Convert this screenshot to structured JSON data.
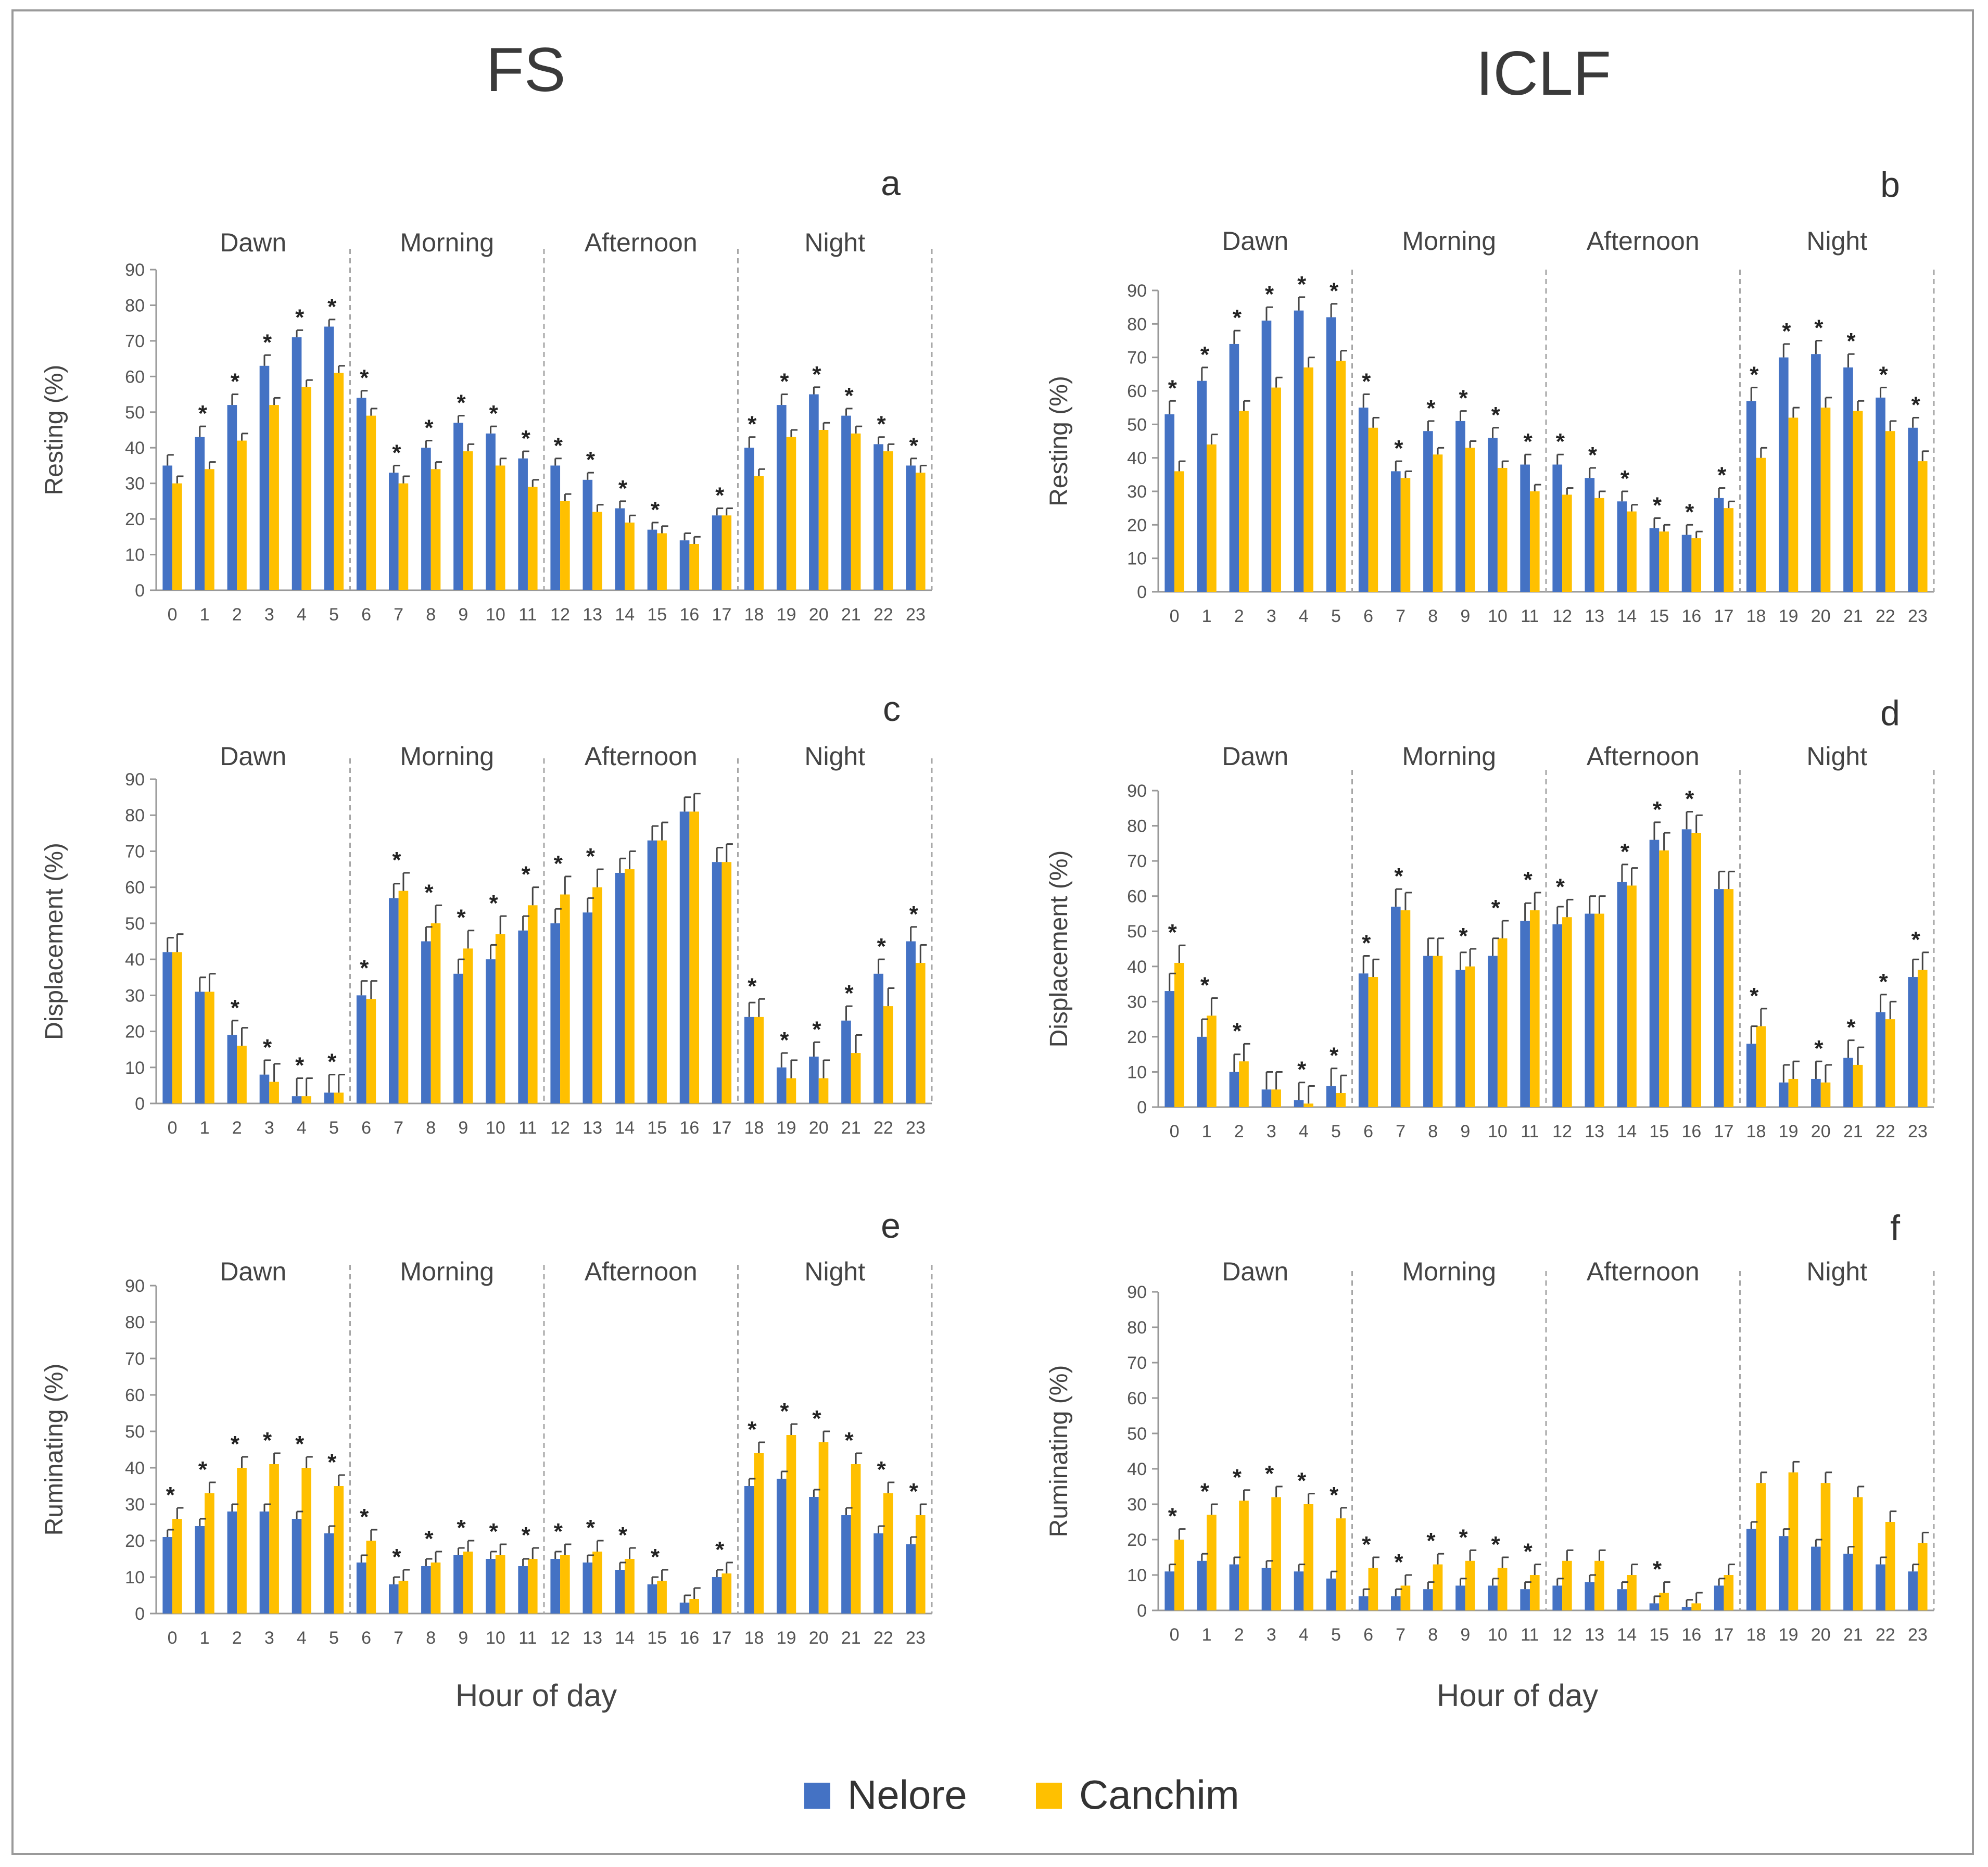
{
  "colors": {
    "nelore": "#4472C4",
    "canchim": "#FFC000",
    "axis": "#999999",
    "error": "#444444",
    "divider": "#a6a6a6"
  },
  "columns": [
    "FS",
    "ICLF"
  ],
  "periods": [
    "Dawn",
    "Morning",
    "Afternoon",
    "Night"
  ],
  "hours": [
    "0",
    "1",
    "2",
    "3",
    "4",
    "5",
    "6",
    "7",
    "8",
    "9",
    "10",
    "11",
    "12",
    "13",
    "14",
    "15",
    "16",
    "17",
    "18",
    "19",
    "20",
    "21",
    "22",
    "23"
  ],
  "x_axis_title": "Hour of day",
  "legend": [
    {
      "name": "Nelore",
      "color": "#4472C4"
    },
    {
      "name": "Canchim",
      "color": "#FFC000"
    }
  ],
  "chart_data": [
    {
      "type": "bar",
      "panel": "a",
      "system": "FS",
      "ylabel": "Resting (%)",
      "ylim": [
        0,
        90
      ],
      "yticks": [
        0,
        10,
        20,
        30,
        40,
        50,
        60,
        70,
        80,
        90
      ],
      "series": [
        {
          "name": "Nelore",
          "values": [
            35,
            43,
            52,
            63,
            71,
            74,
            54,
            33,
            40,
            47,
            44,
            37,
            35,
            31,
            23,
            17,
            14,
            21,
            40,
            52,
            55,
            49,
            41,
            35
          ]
        },
        {
          "name": "Canchim",
          "values": [
            30,
            34,
            42,
            52,
            57,
            61,
            49,
            30,
            34,
            39,
            35,
            29,
            25,
            22,
            19,
            16,
            13,
            21,
            32,
            43,
            45,
            44,
            39,
            33
          ]
        }
      ],
      "errors": {
        "Nelore": [
          3,
          3,
          3,
          3,
          2,
          2,
          2,
          2,
          2,
          2,
          2,
          2,
          2,
          2,
          2,
          2,
          2,
          2,
          3,
          3,
          2,
          2,
          2,
          2
        ],
        "Canchim": [
          2,
          2,
          2,
          2,
          2,
          2,
          2,
          2,
          2,
          2,
          2,
          2,
          2,
          2,
          2,
          2,
          2,
          2,
          2,
          2,
          2,
          2,
          2,
          2
        ]
      },
      "significant": [
        false,
        true,
        true,
        true,
        true,
        true,
        true,
        true,
        true,
        true,
        true,
        true,
        true,
        true,
        true,
        true,
        false,
        true,
        true,
        true,
        true,
        true,
        true,
        true
      ]
    },
    {
      "type": "bar",
      "panel": "b",
      "system": "ICLF",
      "ylabel": "Resting (%)",
      "ylim": [
        0,
        90
      ],
      "yticks": [
        0,
        10,
        20,
        30,
        40,
        50,
        60,
        70,
        80,
        90
      ],
      "series": [
        {
          "name": "Nelore",
          "values": [
            53,
            63,
            74,
            81,
            84,
            82,
            55,
            36,
            48,
            51,
            46,
            38,
            38,
            34,
            27,
            19,
            17,
            28,
            57,
            70,
            71,
            67,
            58,
            49
          ]
        },
        {
          "name": "Canchim",
          "values": [
            36,
            44,
            54,
            61,
            67,
            69,
            49,
            34,
            41,
            43,
            37,
            30,
            29,
            28,
            24,
            18,
            16,
            25,
            40,
            52,
            55,
            54,
            48,
            39
          ]
        }
      ],
      "errors": {
        "Nelore": [
          4,
          4,
          4,
          4,
          4,
          4,
          4,
          3,
          3,
          3,
          3,
          3,
          3,
          3,
          3,
          3,
          3,
          3,
          4,
          4,
          4,
          4,
          3,
          3
        ],
        "Canchim": [
          3,
          3,
          3,
          3,
          3,
          3,
          3,
          2,
          2,
          2,
          2,
          2,
          2,
          2,
          2,
          2,
          2,
          2,
          3,
          3,
          3,
          3,
          3,
          3
        ]
      },
      "significant": [
        true,
        true,
        true,
        true,
        true,
        true,
        true,
        true,
        true,
        true,
        true,
        true,
        true,
        true,
        true,
        true,
        true,
        true,
        true,
        true,
        true,
        true,
        true,
        true
      ]
    },
    {
      "type": "bar",
      "panel": "c",
      "system": "FS",
      "ylabel": "Displacement (%)",
      "ylim": [
        0,
        90
      ],
      "yticks": [
        0,
        10,
        20,
        30,
        40,
        50,
        60,
        70,
        80,
        90
      ],
      "series": [
        {
          "name": "Nelore",
          "values": [
            42,
            31,
            19,
            8,
            2,
            3,
            30,
            57,
            45,
            36,
            40,
            48,
            50,
            53,
            64,
            73,
            81,
            67,
            24,
            10,
            13,
            23,
            36,
            45
          ]
        },
        {
          "name": "Canchim",
          "values": [
            42,
            31,
            16,
            6,
            2,
            3,
            29,
            59,
            50,
            43,
            47,
            55,
            58,
            60,
            65,
            73,
            81,
            67,
            24,
            7,
            7,
            14,
            27,
            39
          ]
        }
      ],
      "errors": {
        "Nelore": [
          4,
          4,
          4,
          4,
          5,
          5,
          4,
          4,
          4,
          4,
          4,
          4,
          4,
          4,
          4,
          4,
          4,
          4,
          4,
          4,
          4,
          4,
          4,
          4
        ],
        "Canchim": [
          5,
          5,
          5,
          5,
          5,
          5,
          5,
          5,
          5,
          5,
          5,
          5,
          5,
          5,
          5,
          5,
          5,
          5,
          5,
          5,
          5,
          5,
          5,
          5
        ]
      },
      "significant": [
        false,
        false,
        true,
        true,
        true,
        true,
        true,
        true,
        true,
        true,
        true,
        true,
        true,
        true,
        false,
        false,
        false,
        false,
        true,
        true,
        true,
        true,
        true,
        true
      ]
    },
    {
      "type": "bar",
      "panel": "d",
      "system": "ICLF",
      "ylabel": "Displacement (%)",
      "ylim": [
        0,
        90
      ],
      "yticks": [
        0,
        10,
        20,
        30,
        40,
        50,
        60,
        70,
        80,
        90
      ],
      "series": [
        {
          "name": "Nelore",
          "values": [
            33,
            20,
            10,
            5,
            2,
            6,
            38,
            57,
            43,
            39,
            43,
            53,
            52,
            55,
            64,
            76,
            79,
            62,
            18,
            7,
            8,
            14,
            27,
            37
          ]
        },
        {
          "name": "Canchim",
          "values": [
            41,
            26,
            13,
            5,
            1,
            4,
            37,
            56,
            43,
            40,
            48,
            56,
            54,
            55,
            63,
            73,
            78,
            62,
            23,
            8,
            7,
            12,
            25,
            39
          ]
        }
      ],
      "errors": {
        "Nelore": [
          5,
          5,
          5,
          5,
          5,
          5,
          5,
          5,
          5,
          5,
          5,
          5,
          5,
          5,
          5,
          5,
          5,
          5,
          5,
          5,
          5,
          5,
          5,
          5
        ],
        "Canchim": [
          5,
          5,
          5,
          5,
          5,
          5,
          5,
          5,
          5,
          5,
          5,
          5,
          5,
          5,
          5,
          5,
          5,
          5,
          5,
          5,
          5,
          5,
          5,
          5
        ]
      },
      "significant": [
        true,
        true,
        true,
        false,
        true,
        true,
        true,
        true,
        false,
        true,
        true,
        true,
        true,
        false,
        true,
        true,
        true,
        false,
        true,
        false,
        true,
        true,
        true,
        true
      ]
    },
    {
      "type": "bar",
      "panel": "e",
      "system": "FS",
      "ylabel": "Ruminating (%)",
      "ylim": [
        0,
        90
      ],
      "yticks": [
        0,
        10,
        20,
        30,
        40,
        50,
        60,
        70,
        80,
        90
      ],
      "series": [
        {
          "name": "Nelore",
          "values": [
            21,
            24,
            28,
            28,
            26,
            22,
            14,
            8,
            13,
            16,
            15,
            13,
            15,
            14,
            12,
            8,
            3,
            10,
            35,
            37,
            32,
            27,
            22,
            19
          ]
        },
        {
          "name": "Canchim",
          "values": [
            26,
            33,
            40,
            41,
            40,
            35,
            20,
            9,
            14,
            17,
            16,
            15,
            16,
            17,
            15,
            9,
            4,
            11,
            44,
            49,
            47,
            41,
            33,
            27
          ]
        }
      ],
      "errors": {
        "Nelore": [
          2,
          2,
          2,
          2,
          2,
          2,
          2,
          2,
          2,
          2,
          2,
          2,
          2,
          2,
          2,
          2,
          2,
          2,
          2,
          2,
          2,
          2,
          2,
          2
        ],
        "Canchim": [
          3,
          3,
          3,
          3,
          3,
          3,
          3,
          3,
          3,
          3,
          3,
          3,
          3,
          3,
          3,
          3,
          3,
          3,
          3,
          3,
          3,
          3,
          3,
          3
        ]
      },
      "significant": [
        true,
        true,
        true,
        true,
        true,
        true,
        true,
        true,
        true,
        true,
        true,
        true,
        true,
        true,
        true,
        true,
        false,
        true,
        true,
        true,
        true,
        true,
        true,
        true
      ]
    },
    {
      "type": "bar",
      "panel": "f",
      "system": "ICLF",
      "ylabel": "Ruminating (%)",
      "ylim": [
        0,
        90
      ],
      "yticks": [
        0,
        10,
        20,
        30,
        40,
        50,
        60,
        70,
        80,
        90
      ],
      "series": [
        {
          "name": "Nelore",
          "values": [
            11,
            14,
            13,
            12,
            11,
            9,
            4,
            4,
            6,
            7,
            7,
            6,
            7,
            8,
            6,
            2,
            1,
            7,
            23,
            21,
            18,
            16,
            13,
            11
          ]
        },
        {
          "name": "Canchim",
          "values": [
            20,
            27,
            31,
            32,
            30,
            26,
            12,
            7,
            13,
            14,
            12,
            10,
            14,
            14,
            10,
            5,
            2,
            10,
            36,
            39,
            36,
            32,
            25,
            19
          ]
        }
      ],
      "errors": {
        "Nelore": [
          2,
          2,
          2,
          2,
          2,
          2,
          2,
          2,
          2,
          2,
          2,
          2,
          2,
          2,
          2,
          2,
          2,
          2,
          2,
          2,
          2,
          2,
          2,
          2
        ],
        "Canchim": [
          3,
          3,
          3,
          3,
          3,
          3,
          3,
          3,
          3,
          3,
          3,
          3,
          3,
          3,
          3,
          3,
          3,
          3,
          3,
          3,
          3,
          3,
          3,
          3
        ]
      },
      "significant": [
        true,
        true,
        true,
        true,
        true,
        true,
        true,
        true,
        true,
        true,
        true,
        true,
        false,
        false,
        false,
        true,
        false,
        false,
        false,
        false,
        false,
        false,
        false,
        false
      ]
    }
  ]
}
